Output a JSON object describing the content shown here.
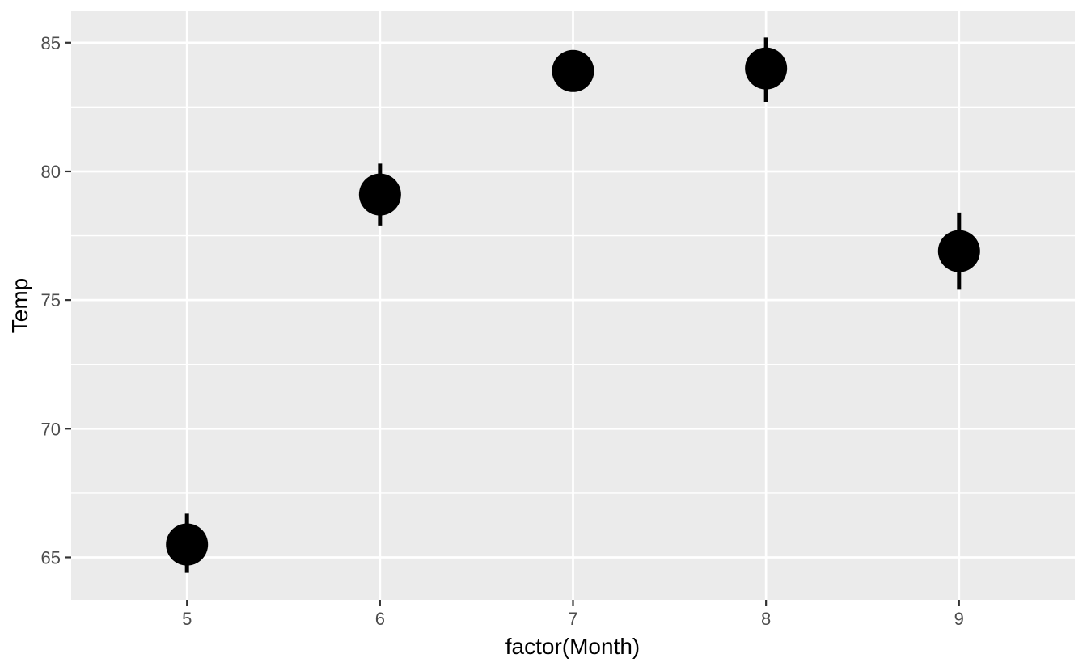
{
  "chart_data": {
    "type": "scatter",
    "subtype": "pointrange",
    "title": "",
    "xlabel": "factor(Month)",
    "ylabel": "Temp",
    "x_categories": [
      "5",
      "6",
      "7",
      "8",
      "9"
    ],
    "points": [
      {
        "x": "5",
        "mean": 65.5,
        "low": 64.4,
        "high": 66.7
      },
      {
        "x": "6",
        "mean": 79.1,
        "low": 77.9,
        "high": 80.3
      },
      {
        "x": "7",
        "mean": 83.9,
        "low": 83.1,
        "high": 84.7
      },
      {
        "x": "8",
        "mean": 84.0,
        "low": 82.7,
        "high": 85.2
      },
      {
        "x": "9",
        "mean": 76.9,
        "low": 75.4,
        "high": 78.4
      }
    ],
    "y_ticks": [
      65,
      70,
      75,
      80,
      85
    ],
    "ylim": [
      63.35,
      86.25
    ],
    "grid": "major-and-minor-horizontal, major-vertical",
    "legend": "none"
  },
  "style": {
    "panel_bg": "#EBEBEB",
    "grid_color": "#FFFFFF",
    "point_color": "#000000",
    "range_color": "#000000",
    "tick_label_color": "#4D4D4D",
    "tick_mark_color": "#333333",
    "axis_title_color": "#000000",
    "outer_bg": "#FFFFFF"
  }
}
